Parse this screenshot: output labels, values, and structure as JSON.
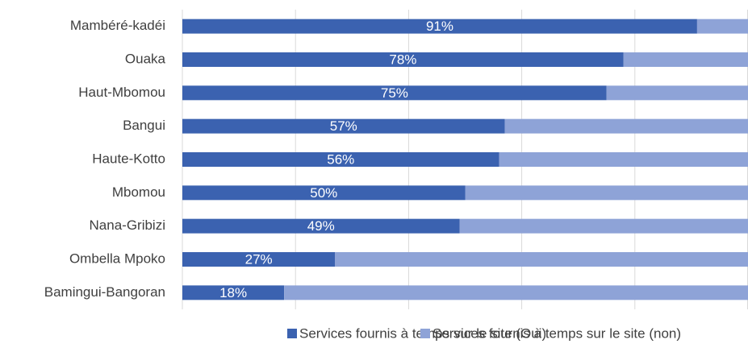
{
  "chart_data": {
    "type": "stacked_barh",
    "categories": [
      "Mambéré-kadéi",
      "Ouaka",
      "Haut-Mbomou",
      "Bangui",
      "Haute-Kotto",
      "Mbomou",
      "Nana-Gribizi",
      "Ombella Mpoko",
      "Bamingui-Bangoran"
    ],
    "series": [
      {
        "name": "Services fournis à temps sur le site (Oui)",
        "color": "#3b62b0",
        "values": [
          91,
          78,
          75,
          57,
          56,
          50,
          49,
          27,
          18
        ],
        "value_labels": [
          "91%",
          "78%",
          "75%",
          "57%",
          "56%",
          "50%",
          "49%",
          "27%",
          "18%"
        ]
      },
      {
        "name": "Services fournis à temps sur le site (non)",
        "color": "#8ea3d7",
        "values": [
          9,
          22,
          25,
          43,
          44,
          50,
          51,
          73,
          82
        ]
      }
    ],
    "xlim": [
      0,
      100
    ],
    "xticks": [
      0,
      20,
      40,
      60,
      80,
      100
    ],
    "grid": true,
    "legend": "bottom"
  }
}
